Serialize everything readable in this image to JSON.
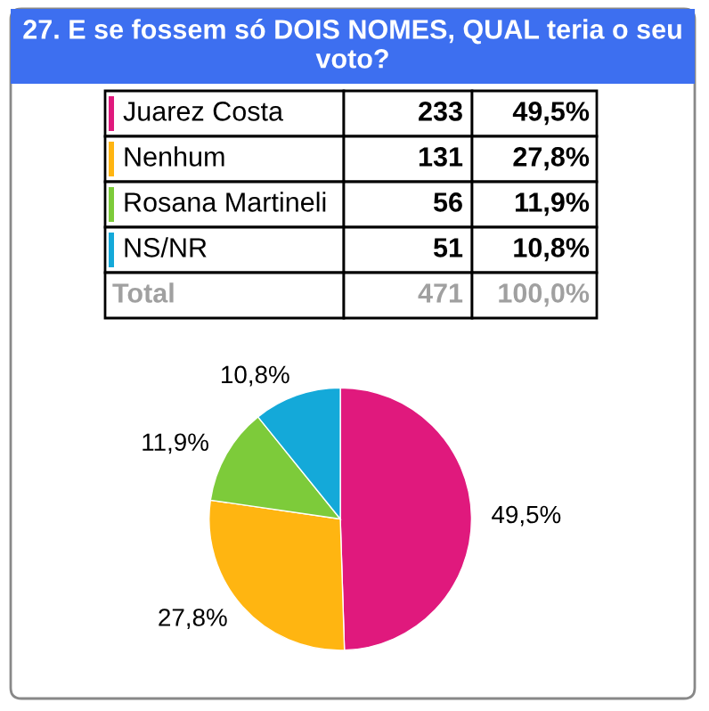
{
  "chart_data": {
    "type": "pie",
    "title": "27. E se fossem só DOIS NOMES, QUAL teria o seu voto?",
    "categories": [
      "Juarez Costa",
      "Nenhum",
      "Rosana Martineli",
      "NS/NR"
    ],
    "values": [
      49.5,
      27.8,
      11.9,
      10.8
    ],
    "colors": [
      "#e0197d",
      "#ffb511",
      "#7dcb3a",
      "#14a9d9"
    ],
    "legend": "top",
    "value_labels": [
      "49,5%",
      "27,8%",
      "11,9%",
      "10,8%"
    ],
    "annotations": [
      "233",
      "131",
      "56",
      "51",
      "Total",
      "471",
      "100,0%"
    ]
  }
}
